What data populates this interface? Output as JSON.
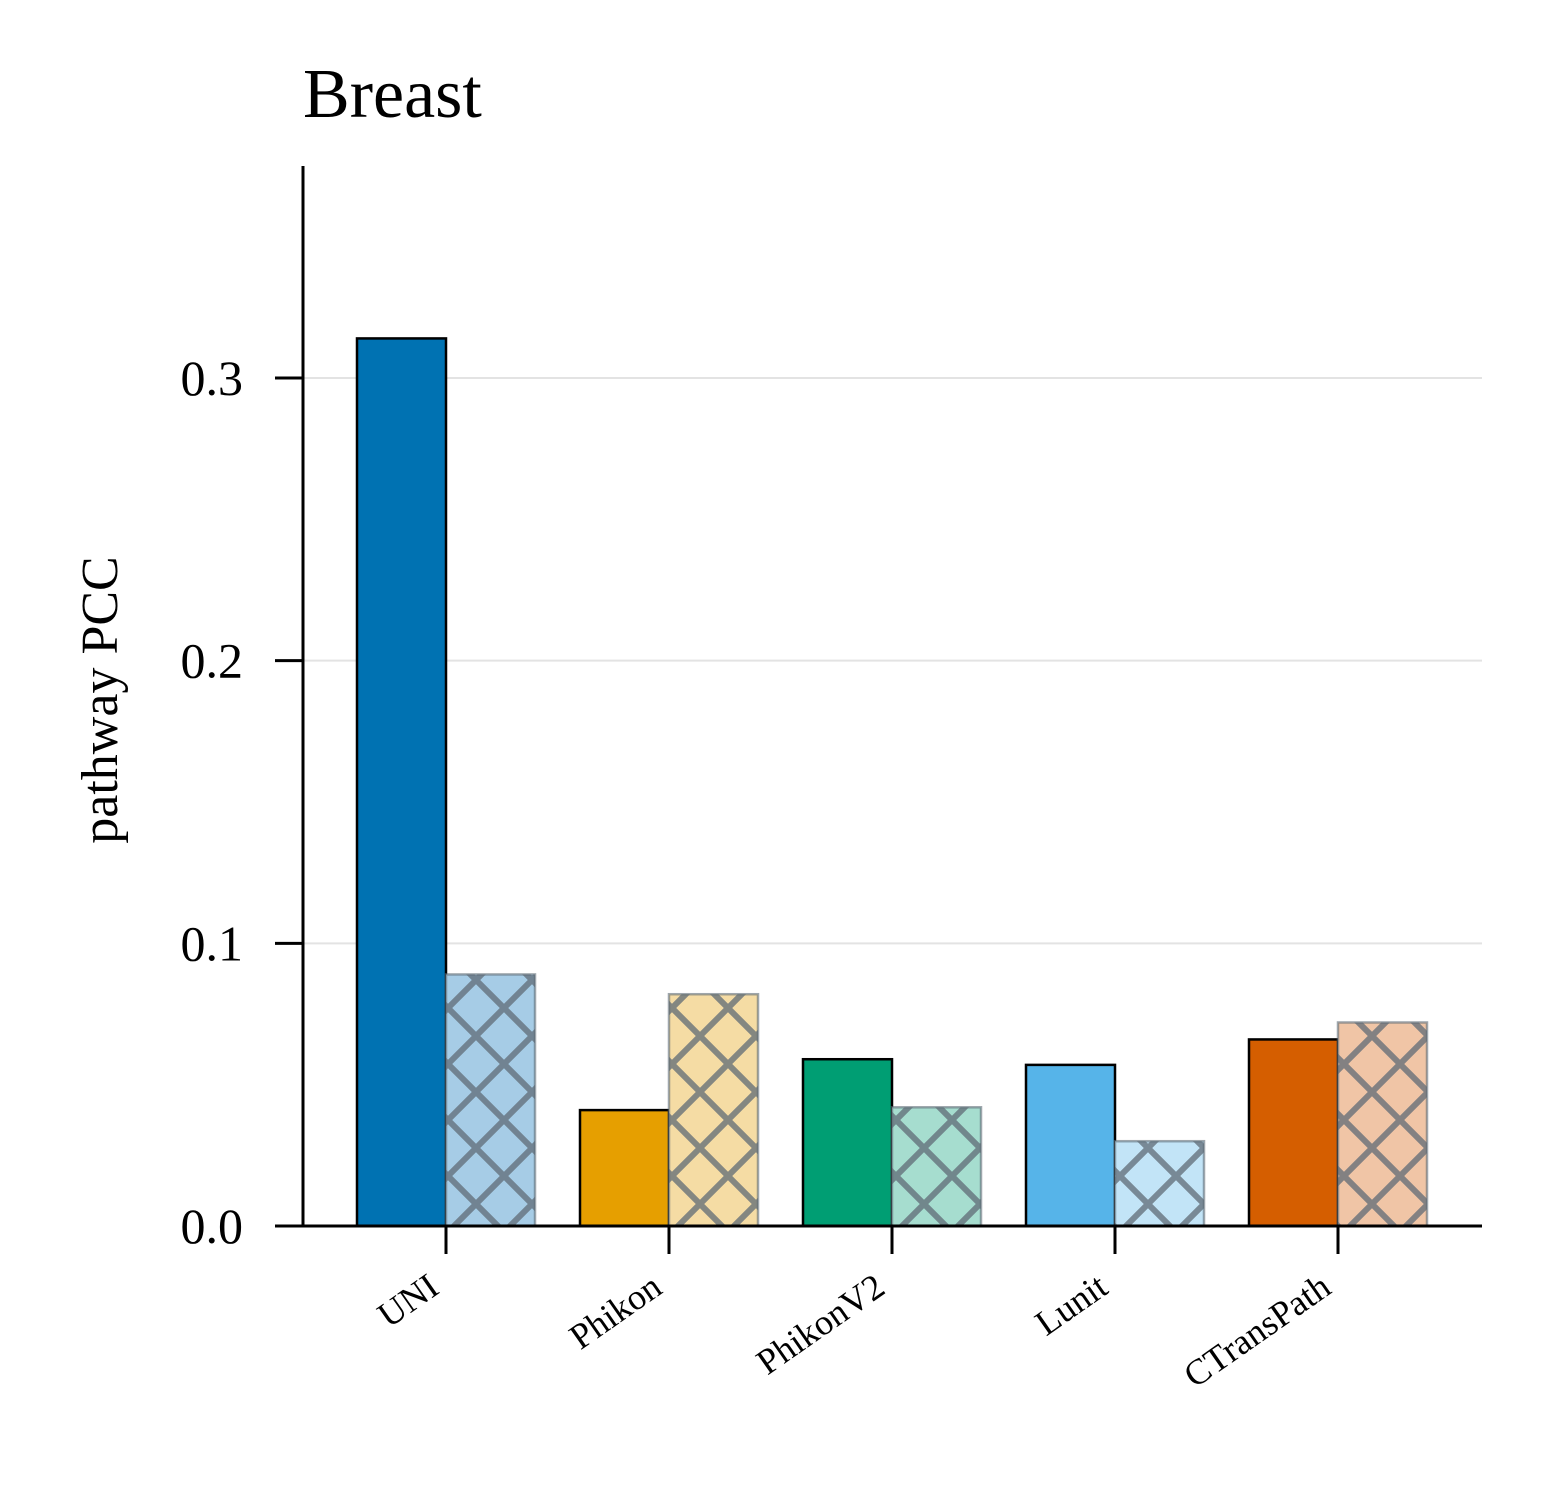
{
  "chart_data": {
    "type": "bar",
    "title": "Breast",
    "xlabel": "",
    "ylabel": "pathway PCC",
    "categories": [
      "UNI",
      "Phikon",
      "PhikonV2",
      "Lunit",
      "CTransPath"
    ],
    "ylim": [
      0,
      0.375
    ],
    "yticks": [
      "0.0",
      "0.1",
      "0.2",
      "0.3"
    ],
    "grid": "horizontal",
    "series": [
      {
        "values": [
          0.314,
          0.041,
          0.059,
          0.057,
          0.066
        ],
        "style": "solid"
      },
      {
        "values": [
          0.089,
          0.082,
          0.042,
          0.03,
          0.072
        ],
        "style": "hatched"
      }
    ],
    "colors": {
      "solid": [
        "#0072B2",
        "#E69F00",
        "#009E73",
        "#56B4E9",
        "#D55E00"
      ],
      "hatched": [
        "#A6CCE6",
        "#F5DCA4",
        "#A6DDCF",
        "#C2E4F7",
        "#F0C5A6"
      ],
      "hatch": "#5E6B75",
      "grid": "#E3E3E3"
    }
  }
}
